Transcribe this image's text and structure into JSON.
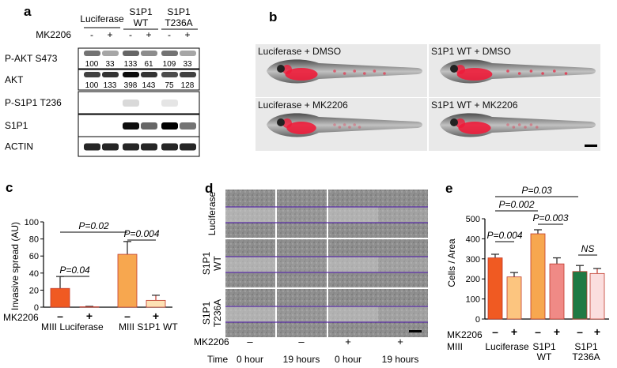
{
  "panel_a": {
    "letter": "a",
    "groups": [
      "Luciferase",
      "S1P1",
      "WT",
      "S1P1",
      "T236A"
    ],
    "treatment_label": "MK2206",
    "signs": [
      "-",
      "+",
      "-",
      "+",
      "-",
      "+"
    ],
    "blots": [
      {
        "label": "P-AKT S473",
        "quant": [
          "100",
          "33",
          "133",
          "61",
          "109",
          "33"
        ]
      },
      {
        "label": "AKT",
        "quant": [
          "100",
          "133",
          "398",
          "143",
          "75",
          "128"
        ]
      },
      {
        "label": "P-S1P1 T236",
        "quant": []
      },
      {
        "label": "S1P1",
        "quant": []
      },
      {
        "label": "ACTIN",
        "quant": []
      }
    ]
  },
  "panel_b": {
    "letter": "b",
    "captions": [
      "Luciferase + DMSO",
      "S1P1 WT + DMSO",
      "Luciferase + MK2206",
      "S1P1 WT + MK2206"
    ]
  },
  "panel_c": {
    "letter": "c",
    "group_labels": [
      "MIII Luciferase",
      "MIII S1P1 WT"
    ],
    "treatment_label": "MK2206",
    "signs": [
      "–",
      "+",
      "–",
      "+"
    ],
    "stats": [
      "P=0.02",
      "P=0.04",
      "P=0.004"
    ],
    "colors": [
      "#f05a22",
      "#f7a74f",
      "#f7a74f",
      "#fde1b4"
    ]
  },
  "panel_d": {
    "letter": "d",
    "row_labels": [
      [
        "Luciferase"
      ],
      [
        "S1P1",
        "WT"
      ],
      [
        "S1P1",
        "T236A"
      ]
    ],
    "treatment_label": "MK2206",
    "time_label": "Time",
    "signs": [
      "–",
      "–",
      "+",
      "+"
    ],
    "times": [
      "0 hour",
      "19 hours",
      "0 hour",
      "19 hours"
    ]
  },
  "panel_e": {
    "letter": "e",
    "treatment_label": "MK2206",
    "miii_label": "MIII",
    "group_labels": [
      [
        "Luciferase"
      ],
      [
        "S1P1",
        "WT"
      ],
      [
        "S1P1",
        "T236A"
      ]
    ],
    "signs": [
      "–",
      "+",
      "–",
      "+",
      "–",
      "+"
    ],
    "stats": [
      "P=0.03",
      "P=0.002",
      "P=0.003",
      "P=0.004",
      "NS"
    ],
    "colors": [
      "#f05a22",
      "#fcc57f",
      "#f7a74f",
      "#f08a86",
      "#1f7a44",
      "#fbdede"
    ]
  },
  "chart_data": [
    {
      "type": "bar",
      "ylabel": "Invasive spread (AU)",
      "ylim": [
        0,
        100
      ],
      "yticks": [
        0,
        20,
        40,
        60,
        80,
        100
      ],
      "categories": [
        "MIII Luciferase –",
        "MIII Luciferase +",
        "MIII S1P1 WT –",
        "MIII S1P1 WT +"
      ],
      "values": [
        22,
        0.5,
        62,
        8
      ],
      "errors": [
        14,
        0.5,
        15,
        6
      ],
      "grid": false
    },
    {
      "type": "bar",
      "ylabel": "Cells / Area",
      "ylim": [
        0,
        500
      ],
      "yticks": [
        0,
        100,
        200,
        300,
        400,
        500
      ],
      "categories": [
        "Luciferase –",
        "Luciferase +",
        "S1P1 WT –",
        "S1P1 WT +",
        "S1P1 T236A –",
        "S1P1 T236A +"
      ],
      "values": [
        305,
        210,
        425,
        275,
        237,
        227
      ],
      "errors": [
        18,
        22,
        20,
        30,
        30,
        25
      ],
      "grid": false
    }
  ]
}
